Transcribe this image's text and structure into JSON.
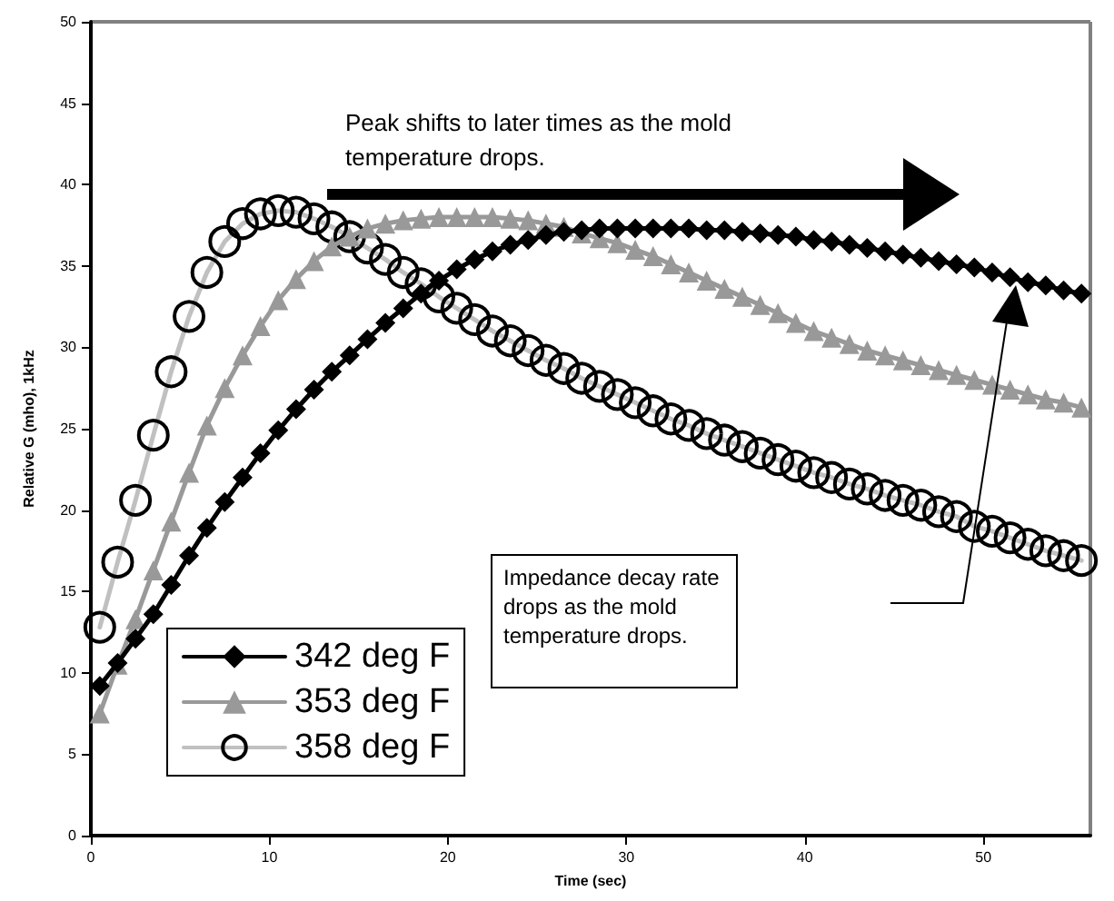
{
  "chart_data": {
    "type": "line",
    "xlabel": "Time (sec)",
    "ylabel": "Relative G (mho), 1kHz",
    "x": [
      0.5,
      1.5,
      2.5,
      3.5,
      4.5,
      5.5,
      6.5,
      7.5,
      8.5,
      9.5,
      10.5,
      11.5,
      12.5,
      13.5,
      14.5,
      15.5,
      16.5,
      17.5,
      18.5,
      19.5,
      20.5,
      21.5,
      22.5,
      23.5,
      24.5,
      25.5,
      26.5,
      27.5,
      28.5,
      29.5,
      30.5,
      31.5,
      32.5,
      33.5,
      34.5,
      35.5,
      36.5,
      37.5,
      38.5,
      39.5,
      40.5,
      41.5,
      42.5,
      43.5,
      44.5,
      45.5,
      46.5,
      47.5,
      48.5,
      49.5,
      50.5,
      51.5,
      52.5,
      53.5,
      54.5,
      55.5
    ],
    "series": [
      {
        "name": "342 deg F",
        "color": "#000000",
        "marker": "diamond",
        "values": [
          9.2,
          10.6,
          12.1,
          13.6,
          15.4,
          17.2,
          18.9,
          20.5,
          22.0,
          23.5,
          24.9,
          26.2,
          27.4,
          28.5,
          29.5,
          30.5,
          31.5,
          32.4,
          33.3,
          34.1,
          34.8,
          35.4,
          35.9,
          36.3,
          36.6,
          36.9,
          37.1,
          37.2,
          37.3,
          37.3,
          37.3,
          37.3,
          37.3,
          37.3,
          37.2,
          37.2,
          37.1,
          37.0,
          36.9,
          36.8,
          36.6,
          36.5,
          36.3,
          36.1,
          35.9,
          35.7,
          35.5,
          35.3,
          35.1,
          34.9,
          34.6,
          34.3,
          34.0,
          33.8,
          33.5,
          33.3
        ]
      },
      {
        "name": "353 deg F",
        "color": "#999999",
        "marker": "triangle",
        "values": [
          7.5,
          10.5,
          13.3,
          16.3,
          19.3,
          22.3,
          25.2,
          27.5,
          29.5,
          31.3,
          32.9,
          34.2,
          35.3,
          36.2,
          36.8,
          37.3,
          37.6,
          37.8,
          37.9,
          38.0,
          38.0,
          38.0,
          38.0,
          37.9,
          37.8,
          37.6,
          37.4,
          37.0,
          36.7,
          36.4,
          36.0,
          35.6,
          35.1,
          34.6,
          34.1,
          33.6,
          33.1,
          32.6,
          32.1,
          31.5,
          31.0,
          30.6,
          30.2,
          29.8,
          29.5,
          29.2,
          28.9,
          28.6,
          28.3,
          28.0,
          27.7,
          27.4,
          27.1,
          26.8,
          26.6,
          26.3
        ]
      },
      {
        "name": "358 deg F",
        "color": "#c0c0c0",
        "marker": "circle",
        "values": [
          12.8,
          16.8,
          20.6,
          24.6,
          28.5,
          31.9,
          34.6,
          36.5,
          37.6,
          38.2,
          38.4,
          38.3,
          37.9,
          37.4,
          36.8,
          36.1,
          35.4,
          34.6,
          33.9,
          33.1,
          32.4,
          31.7,
          31.0,
          30.4,
          29.8,
          29.2,
          28.7,
          28.1,
          27.6,
          27.1,
          26.6,
          26.1,
          25.6,
          25.2,
          24.7,
          24.3,
          23.9,
          23.5,
          23.1,
          22.7,
          22.3,
          22.0,
          21.6,
          21.3,
          20.9,
          20.6,
          20.3,
          19.9,
          19.6,
          19.0,
          18.7,
          18.3,
          17.9,
          17.5,
          17.2,
          16.9
        ]
      }
    ],
    "xlim": [
      0,
      56
    ],
    "xticks": [
      0,
      10,
      20,
      30,
      40,
      50
    ],
    "ylim": [
      0,
      50
    ],
    "yticks": [
      0,
      5,
      10,
      15,
      20,
      25,
      30,
      35,
      40,
      45,
      50
    ],
    "grid": false,
    "legend": "bottom left",
    "line_style": "solid",
    "annotations": [
      "Peak shifts to later times as the mold temperature drops.",
      "Impedance decay rate drops as the mold temperature drops."
    ]
  }
}
